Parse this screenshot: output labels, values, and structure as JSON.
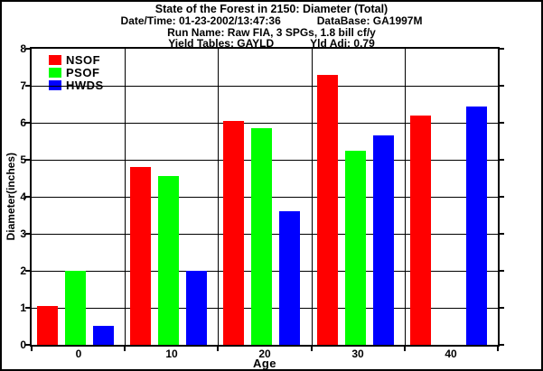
{
  "header": {
    "title": "State of the Forest in 2150: Diameter (Total)",
    "datetime_label": "Date/Time: 01-23-2002/13:47:36",
    "database_label": "DataBase: GA1997M",
    "run_name_label": "Run Name: Raw FIA, 3 SPGs, 1.8 bill cf/y",
    "yield_tables_label": "Yield Tables: GAYLD",
    "yield_adj_label": "Yld Adj: 0.79"
  },
  "chart_data": {
    "type": "bar",
    "title": "State of the Forest in 2150: Diameter (Total)",
    "categories": [
      "0",
      "10",
      "20",
      "30",
      "40"
    ],
    "series": [
      {
        "name": "NSOF",
        "color": "#ff0000",
        "values": [
          1.05,
          4.8,
          6.05,
          7.3,
          6.2
        ]
      },
      {
        "name": "PSOF",
        "color": "#00ff00",
        "values": [
          2.0,
          4.55,
          5.85,
          5.25,
          0
        ]
      },
      {
        "name": "HWDS",
        "color": "#0000ff",
        "values": [
          0.5,
          2.0,
          3.6,
          5.65,
          6.45
        ]
      }
    ],
    "xlabel": "Age",
    "ylabel": "Diameter(inches)",
    "ylim": [
      0,
      8
    ],
    "yticks": [
      0,
      1,
      2,
      3,
      4,
      5,
      6,
      7,
      8
    ],
    "grid": "horizontal lines at each y integer; vertical lines at category boundaries",
    "legend_position": "top-left inside plot",
    "colors": {
      "axis": "#000000",
      "background": "#ffffff"
    }
  }
}
